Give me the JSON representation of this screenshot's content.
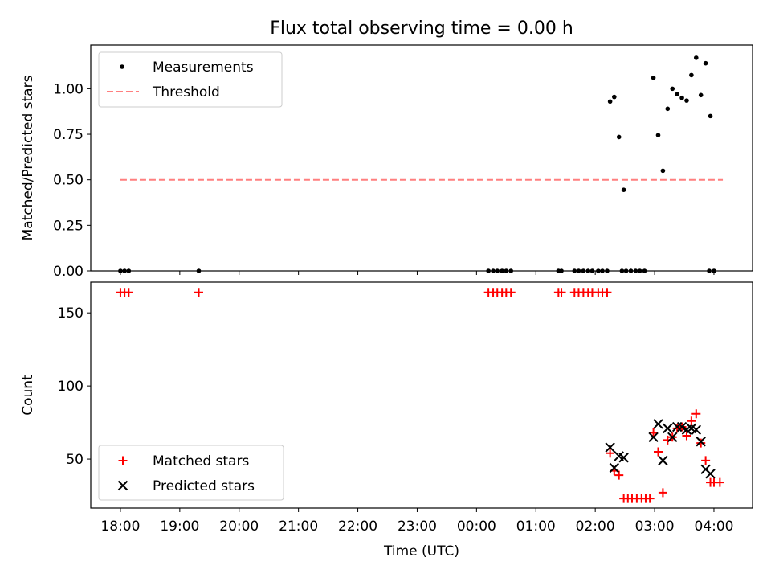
{
  "figure_title": "Flux total observing time = 0.00 h",
  "chart_data": [
    {
      "type": "scatter",
      "panel": "top",
      "title": "Flux total observing time = 0.00 h",
      "xlabel": "",
      "ylabel": "Matched/Predicted stars",
      "x_unit": "hours since 18:00 UTC",
      "xlim": [
        -0.5,
        10.65
      ],
      "ylim": [
        0.0,
        1.24
      ],
      "yticks": [
        0.0,
        0.25,
        0.5,
        0.75,
        1.0
      ],
      "ytick_labels": [
        "0.00",
        "0.25",
        "0.50",
        "0.75",
        "1.00"
      ],
      "legend": [
        "Measurements",
        "Threshold"
      ],
      "legend_loc": "upper left",
      "threshold": {
        "name": "Threshold",
        "y": 0.5,
        "x_range": [
          0.0,
          10.15
        ],
        "color": "#ff7f7f",
        "style": "dashed"
      },
      "series": [
        {
          "name": "Measurements",
          "color": "#000000",
          "points": [
            [
              0.0,
              0
            ],
            [
              0.07,
              0
            ],
            [
              0.14,
              0
            ],
            [
              1.32,
              0
            ],
            [
              6.2,
              0
            ],
            [
              6.28,
              0
            ],
            [
              6.35,
              0
            ],
            [
              6.43,
              0
            ],
            [
              6.5,
              0
            ],
            [
              6.58,
              0
            ],
            [
              7.38,
              0
            ],
            [
              7.43,
              0
            ],
            [
              7.65,
              0
            ],
            [
              7.72,
              0
            ],
            [
              7.8,
              0
            ],
            [
              7.88,
              0
            ],
            [
              7.95,
              0
            ],
            [
              8.05,
              0
            ],
            [
              8.12,
              0
            ],
            [
              8.2,
              0
            ],
            [
              8.45,
              0
            ],
            [
              8.52,
              0
            ],
            [
              8.6,
              0
            ],
            [
              8.68,
              0
            ],
            [
              8.75,
              0
            ],
            [
              8.83,
              0
            ],
            [
              9.92,
              0
            ],
            [
              10.0,
              0
            ],
            [
              8.25,
              0.93
            ],
            [
              8.32,
              0.955
            ],
            [
              8.4,
              0.735
            ],
            [
              8.48,
              0.445
            ],
            [
              8.98,
              1.06
            ],
            [
              9.06,
              0.745
            ],
            [
              9.14,
              0.55
            ],
            [
              9.22,
              0.89
            ],
            [
              9.3,
              1.0
            ],
            [
              9.38,
              0.97
            ],
            [
              9.46,
              0.95
            ],
            [
              9.54,
              0.935
            ],
            [
              9.62,
              1.075
            ],
            [
              9.7,
              1.17
            ],
            [
              9.78,
              0.965
            ],
            [
              9.86,
              1.14
            ],
            [
              9.94,
              0.85
            ]
          ]
        }
      ]
    },
    {
      "type": "scatter",
      "panel": "bottom",
      "xlabel": "Time (UTC)",
      "ylabel": "Count",
      "x_unit": "hours since 18:00 UTC",
      "xlim": [
        -0.5,
        10.65
      ],
      "ylim": [
        16.5,
        171
      ],
      "yticks": [
        50,
        100,
        150
      ],
      "xticks": [
        0,
        1,
        2,
        3,
        4,
        5,
        6,
        7,
        8,
        9,
        10
      ],
      "xtick_labels": [
        "18:00",
        "19:00",
        "20:00",
        "21:00",
        "22:00",
        "23:00",
        "00:00",
        "01:00",
        "02:00",
        "03:00",
        "04:00"
      ],
      "legend": [
        "Matched stars",
        "Predicted stars"
      ],
      "legend_loc": "lower left",
      "series": [
        {
          "name": "Matched stars",
          "color": "#ff0000",
          "marker": "plus",
          "points": [
            [
              0.0,
              164
            ],
            [
              0.07,
              164
            ],
            [
              0.14,
              164
            ],
            [
              1.32,
              164
            ],
            [
              6.2,
              164
            ],
            [
              6.28,
              164
            ],
            [
              6.35,
              164
            ],
            [
              6.43,
              164
            ],
            [
              6.5,
              164
            ],
            [
              6.58,
              164
            ],
            [
              7.38,
              164
            ],
            [
              7.43,
              164
            ],
            [
              7.65,
              164
            ],
            [
              7.72,
              164
            ],
            [
              7.8,
              164
            ],
            [
              7.88,
              164
            ],
            [
              7.95,
              164
            ],
            [
              8.05,
              164
            ],
            [
              8.12,
              164
            ],
            [
              8.2,
              164
            ],
            [
              8.25,
              54
            ],
            [
              8.32,
              42
            ],
            [
              8.4,
              39
            ],
            [
              8.48,
              23
            ],
            [
              8.55,
              23
            ],
            [
              8.62,
              23
            ],
            [
              8.7,
              23
            ],
            [
              8.78,
              23
            ],
            [
              8.85,
              23
            ],
            [
              8.92,
              23
            ],
            [
              8.98,
              68
            ],
            [
              9.06,
              55
            ],
            [
              9.14,
              27
            ],
            [
              9.22,
              63
            ],
            [
              9.3,
              65
            ],
            [
              9.38,
              71
            ],
            [
              9.46,
              72
            ],
            [
              9.54,
              66
            ],
            [
              9.62,
              76
            ],
            [
              9.7,
              81
            ],
            [
              9.78,
              61
            ],
            [
              9.86,
              49
            ],
            [
              9.94,
              34
            ],
            [
              10.0,
              34
            ],
            [
              10.1,
              34
            ]
          ]
        },
        {
          "name": "Predicted stars",
          "color": "#000000",
          "marker": "x",
          "points": [
            [
              8.25,
              58
            ],
            [
              8.32,
              44
            ],
            [
              8.4,
              52
            ],
            [
              8.48,
              51
            ],
            [
              8.98,
              65
            ],
            [
              9.06,
              74
            ],
            [
              9.14,
              49
            ],
            [
              9.22,
              71
            ],
            [
              9.3,
              65
            ],
            [
              9.38,
              72
            ],
            [
              9.46,
              72
            ],
            [
              9.54,
              70
            ],
            [
              9.62,
              71
            ],
            [
              9.7,
              70
            ],
            [
              9.78,
              62
            ],
            [
              9.86,
              43
            ],
            [
              9.94,
              40
            ]
          ]
        }
      ]
    }
  ]
}
